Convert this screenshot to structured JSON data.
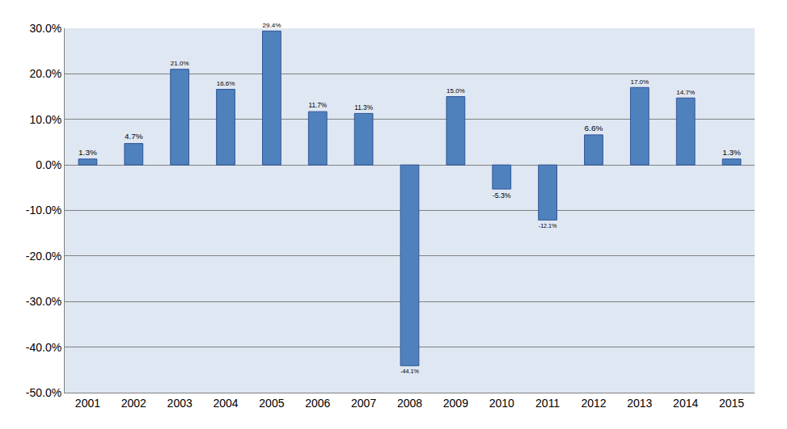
{
  "chart_data": {
    "type": "bar",
    "categories": [
      "2001",
      "2002",
      "2003",
      "2004",
      "2005",
      "2006",
      "2007",
      "2008",
      "2009",
      "2010",
      "2011",
      "2012",
      "2013",
      "2014",
      "2015"
    ],
    "values": [
      1.3,
      4.7,
      21.0,
      16.6,
      29.4,
      11.7,
      11.3,
      -44.1,
      15.0,
      -5.3,
      -12.1,
      6.6,
      17.0,
      14.7,
      1.3
    ],
    "value_labels": [
      "1.3%",
      "4.7%",
      "21.0%",
      "16.6%",
      "29.4%",
      "11.7%",
      "11.3%",
      "-44.1%",
      "15.0%",
      "-5.3%",
      "-12.1%",
      "6.6%",
      "17.0%",
      "14.7%",
      "1.3%"
    ],
    "color": "#4f81bd",
    "data_labels": true,
    "ylim": [
      -50,
      30
    ],
    "yticks": [
      {
        "value": -50,
        "label": "-50.0%"
      },
      {
        "value": -40,
        "label": "-40.0%"
      },
      {
        "value": -30,
        "label": "-30.0%"
      },
      {
        "value": -20,
        "label": "-20.0%"
      },
      {
        "value": -10,
        "label": "-10.0%"
      },
      {
        "value": 0,
        "label": "0.0%"
      },
      {
        "value": 10,
        "label": "10.0%"
      },
      {
        "value": 20,
        "label": "20.0%"
      },
      {
        "value": 30,
        "label": "30.0%"
      }
    ],
    "grid": true
  }
}
